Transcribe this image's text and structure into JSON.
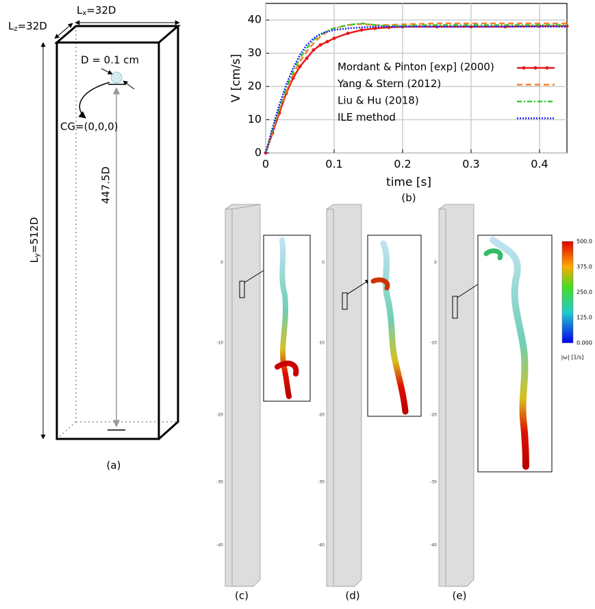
{
  "chart_data": {
    "type": "line",
    "caption": "(b)",
    "x_label": "time [s]",
    "y_label": "V [cm/s]",
    "x": [
      0,
      0.01,
      0.02,
      0.03,
      0.04,
      0.05,
      0.06,
      0.07,
      0.08,
      0.09,
      0.1,
      0.12,
      0.14,
      0.16,
      0.18,
      0.2,
      0.25,
      0.3,
      0.35,
      0.4,
      0.44
    ],
    "series": [
      {
        "name": "Mordant & Pinton [exp] (2000)",
        "color": "#e41a1c",
        "style": "solid-marker",
        "values": [
          0,
          6,
          12,
          18,
          22.5,
          26,
          28.5,
          31,
          32.5,
          33.5,
          34.5,
          36,
          37,
          37.5,
          37.8,
          38,
          38,
          38,
          38,
          38.2,
          38.2
        ]
      },
      {
        "name": "Yang & Stern (2012)",
        "color": "#ff7f2a",
        "style": "dashed",
        "values": [
          0,
          6.5,
          13,
          18.5,
          23.5,
          27.5,
          30.5,
          33,
          35,
          36.5,
          37.5,
          38.5,
          38.8,
          38.5,
          38.5,
          38.7,
          39,
          39,
          39,
          39,
          39
        ]
      },
      {
        "name": "Liu & Hu (2018)",
        "color": "#33cc33",
        "style": "dashdot",
        "values": [
          0,
          7,
          13.5,
          19.5,
          24.5,
          28.5,
          31.5,
          34,
          35.5,
          36.8,
          37.5,
          38.5,
          39,
          38.5,
          38.2,
          38.3,
          38.5,
          38.5,
          38.5,
          38.5,
          38.5
        ]
      },
      {
        "name": "ILE method",
        "color": "#1a1aff",
        "style": "dotted",
        "values": [
          0,
          7.5,
          14.5,
          20.5,
          25.5,
          29.5,
          32.5,
          34.5,
          35.8,
          36.5,
          37,
          37.5,
          37.8,
          38,
          38,
          38,
          38,
          38,
          38,
          38,
          38
        ]
      }
    ],
    "xlim": [
      0,
      0.44
    ],
    "ylim": [
      0,
      45
    ],
    "xticks": [
      0,
      0.1,
      0.2,
      0.3,
      0.4
    ],
    "yticks": [
      0,
      10,
      20,
      30,
      40
    ],
    "grid": true,
    "legend": "right"
  },
  "diagram": {
    "caption": "(a)",
    "lx": {
      "main": "L",
      "sub": "x",
      "rest": "=32D"
    },
    "lz": {
      "main": "L",
      "sub": "z",
      "rest": "=32D"
    },
    "ly": {
      "main": "L",
      "sub": "y",
      "rest": "=512D"
    },
    "diameter": "D = 0.1 cm",
    "cg": "CG=(0,0,0)",
    "height": "447.5D"
  },
  "panels": {
    "captions": [
      "(c)",
      "(d)",
      "(e)"
    ],
    "tube_ticks": [
      "0",
      "-10",
      "-20",
      "-30",
      "-40"
    ],
    "colorbar_ticks": [
      "500.0",
      "375.0",
      "250.0",
      "125.0",
      "0.000"
    ],
    "colorbar_label": "|ω| [1/s]"
  }
}
